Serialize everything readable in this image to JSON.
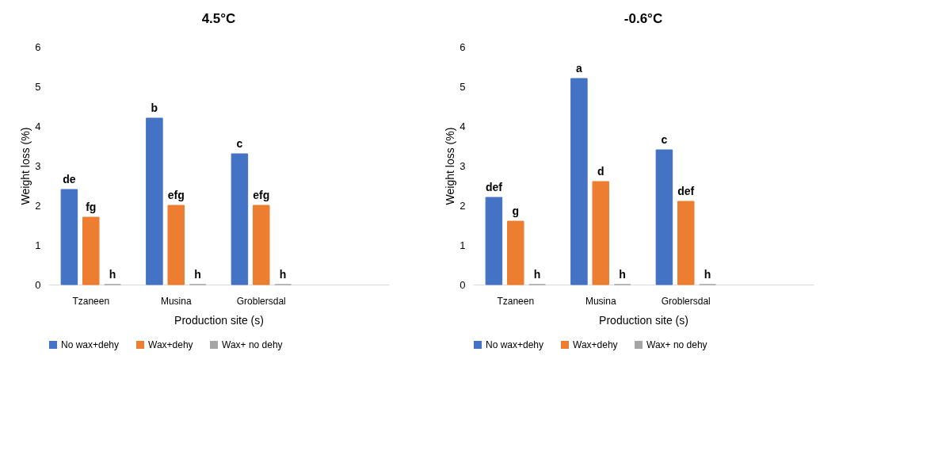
{
  "chart_data": [
    {
      "type": "bar",
      "title": "4.5°C",
      "xlabel": "Production site (s)",
      "ylabel": "Weight loss (%)",
      "categories": [
        "Tzaneen",
        "Musina",
        "Groblersdal",
        null
      ],
      "ylim": [
        0,
        6
      ],
      "yticks": [
        0,
        1,
        2,
        3,
        4,
        5,
        6
      ],
      "grid": false,
      "legend": "bottom",
      "series": [
        {
          "name": "No wax+dehy",
          "color": "#4472c4",
          "values": [
            2.4,
            4.2,
            3.3,
            null
          ],
          "value_labels": [
            "de",
            "b",
            "c",
            null
          ]
        },
        {
          "name": "Wax+dehy",
          "color": "#ed7d31",
          "values": [
            1.7,
            2.0,
            2.0,
            null
          ],
          "value_labels": [
            "fg",
            "efg",
            "efg",
            null
          ]
        },
        {
          "name": "Wax+ no dehy",
          "color": "#a5a5a5",
          "values": [
            0,
            0,
            0,
            null
          ],
          "value_labels": [
            "h",
            "h",
            "h",
            null
          ]
        }
      ]
    },
    {
      "type": "bar",
      "title": "-0.6°C",
      "xlabel": "Production site (s)",
      "ylabel": "Weight loss (%)",
      "categories": [
        "Tzaneen",
        "Musina",
        "Groblersdal",
        null
      ],
      "ylim": [
        0,
        6
      ],
      "yticks": [
        0,
        1,
        2,
        3,
        4,
        5,
        6
      ],
      "grid": false,
      "legend": "bottom",
      "series": [
        {
          "name": "No wax+dehy",
          "color": "#4472c4",
          "values": [
            2.2,
            5.2,
            3.4,
            null
          ],
          "value_labels": [
            "def",
            "a",
            "c",
            null
          ]
        },
        {
          "name": "Wax+dehy",
          "color": "#ed7d31",
          "values": [
            1.6,
            2.6,
            2.1,
            null
          ],
          "value_labels": [
            "g",
            "d",
            "def",
            null
          ]
        },
        {
          "name": "Wax+ no dehy",
          "color": "#a5a5a5",
          "values": [
            0,
            0,
            0,
            null
          ],
          "value_labels": [
            "h",
            "h",
            "h",
            null
          ]
        }
      ]
    }
  ]
}
